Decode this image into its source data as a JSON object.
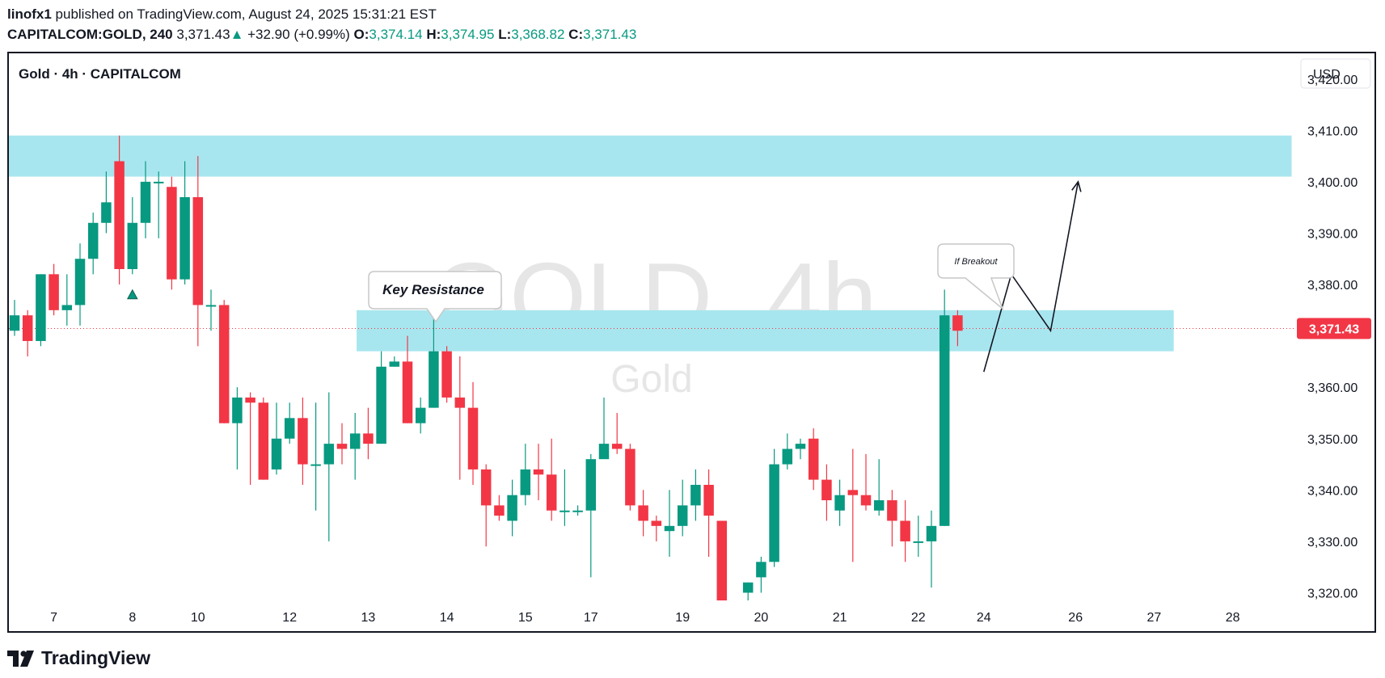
{
  "header": {
    "author": "linofx1",
    "published_text": "published on TradingView.com, August 24, 2025 15:31:21 EST",
    "symbol": "CAPITALCOM:GOLD, 240",
    "last": "3,371.43",
    "arrow": "▲",
    "change": "+32.90 (+0.99%)",
    "o_label": "O:",
    "o_value": "3,374.14",
    "h_label": "H:",
    "h_value": "3,374.95",
    "l_label": "L:",
    "l_value": "3,368.82",
    "c_label": "C:",
    "c_value": "3,371.43"
  },
  "pane": {
    "legend": "Gold · 4h · CAPITALCOM",
    "currency": "USD",
    "watermark": "GOLD, 4h",
    "watermark_sub": "Gold",
    "price_tag": "3,371.43",
    "annotation_key": "Key Resistance",
    "annotation_breakout": "If Breakout"
  },
  "footer": {
    "brand": "TradingView"
  },
  "colors": {
    "up": "#089981",
    "down": "#f23645",
    "zone": "#a8e6ef",
    "price_line": "#f23645",
    "watermark": "#e6e6e6"
  },
  "chart_data": {
    "type": "candlestick",
    "title": "Gold · 4h · CAPITALCOM",
    "ylim": [
      3318.5,
      3425
    ],
    "y_ticks": [
      3320,
      3330,
      3340,
      3350,
      3360,
      3370,
      3380,
      3390,
      3400,
      3410,
      3420
    ],
    "y_tick_labels": [
      "3,320.00",
      "3,330.00",
      "3,340.00",
      "3,350.00",
      "3,360.00",
      "",
      "3,380.00",
      "3,390.00",
      "3,400.00",
      "3,410.00",
      "3,420.00"
    ],
    "x_ticks": [
      {
        "index": 3,
        "label": "7"
      },
      {
        "index": 9,
        "label": "8"
      },
      {
        "index": 14,
        "label": "10"
      },
      {
        "index": 21,
        "label": "12"
      },
      {
        "index": 27,
        "label": "13"
      },
      {
        "index": 33,
        "label": "14"
      },
      {
        "index": 39,
        "label": "15"
      },
      {
        "index": 44,
        "label": "17"
      },
      {
        "index": 51,
        "label": "19"
      },
      {
        "index": 57,
        "label": "20"
      },
      {
        "index": 63,
        "label": "21"
      },
      {
        "index": 69,
        "label": "22"
      },
      {
        "index": 74,
        "label": "24"
      },
      {
        "index": 81,
        "label": "26"
      },
      {
        "index": 87,
        "label": "27"
      },
      {
        "index": 93,
        "label": "28"
      }
    ],
    "candles": [
      [
        3371,
        3374,
        3377,
        3370
      ],
      [
        3374,
        3369,
        3375,
        3366
      ],
      [
        3369,
        3382,
        3382,
        3368
      ],
      [
        3382,
        3375,
        3384,
        3374
      ],
      [
        3375,
        3376,
        3382,
        3372
      ],
      [
        3376,
        3385,
        3388,
        3372
      ],
      [
        3385,
        3392,
        3394,
        3382
      ],
      [
        3392,
        3396,
        3402,
        3390
      ],
      [
        3404,
        3383,
        3409,
        3380
      ],
      [
        3383,
        3392,
        3397,
        3382
      ],
      [
        3392,
        3400,
        3404,
        3389
      ],
      [
        3400,
        3400,
        3402,
        3389
      ],
      [
        3399,
        3381,
        3401,
        3379
      ],
      [
        3381,
        3397,
        3404,
        3380
      ],
      [
        3397,
        3376,
        3405,
        3368
      ],
      [
        3376,
        3376,
        3379,
        3371
      ],
      [
        3376,
        3353,
        3377,
        3353
      ],
      [
        3353,
        3358,
        3360,
        3344
      ],
      [
        3358,
        3357,
        3359,
        3341
      ],
      [
        3357,
        3342,
        3358,
        3342
      ],
      [
        3344,
        3350,
        3357,
        3343
      ],
      [
        3350,
        3354,
        3357,
        3349
      ],
      [
        3354,
        3345,
        3358,
        3341
      ],
      [
        3345,
        3345,
        3357,
        3336
      ],
      [
        3345,
        3349,
        3359,
        3330
      ],
      [
        3349,
        3348,
        3353,
        3345
      ],
      [
        3348,
        3351,
        3355,
        3342
      ],
      [
        3351,
        3349,
        3356,
        3346
      ],
      [
        3349,
        3364,
        3367,
        3349
      ],
      [
        3364,
        3365,
        3366,
        3364
      ],
      [
        3365,
        3353,
        3370,
        3353
      ],
      [
        3353,
        3356,
        3358,
        3351
      ],
      [
        3356,
        3367,
        3374,
        3356
      ],
      [
        3367,
        3358,
        3368,
        3357
      ],
      [
        3358,
        3356,
        3366,
        3342
      ],
      [
        3356,
        3344,
        3361,
        3341
      ],
      [
        3344,
        3337,
        3345,
        3329
      ],
      [
        3337,
        3335,
        3339,
        3334
      ],
      [
        3334,
        3339,
        3342,
        3331
      ],
      [
        3339,
        3344,
        3349,
        3337
      ],
      [
        3344,
        3343,
        3349,
        3338
      ],
      [
        3343,
        3336,
        3350,
        3334
      ],
      [
        3336,
        3336,
        3344,
        3333
      ],
      [
        3336,
        3336,
        3337,
        3335
      ],
      [
        3336,
        3346,
        3347,
        3323
      ],
      [
        3346,
        3349,
        3358,
        3347
      ],
      [
        3349,
        3348,
        3355,
        3347
      ],
      [
        3348,
        3337,
        3349,
        3336
      ],
      [
        3337,
        3334,
        3340,
        3331
      ],
      [
        3334,
        3333,
        3335,
        3330
      ],
      [
        3332,
        3333,
        3340,
        3327
      ],
      [
        3333,
        3337,
        3342,
        3331
      ],
      [
        3337,
        3341,
        3344,
        3334
      ],
      [
        3341,
        3335,
        3344,
        3327
      ],
      [
        3334,
        3318,
        3334,
        3317
      ],
      [
        3316,
        3318,
        3318,
        3315
      ],
      [
        3320,
        3322,
        3322,
        3317
      ],
      [
        3323,
        3326,
        3327,
        3320
      ],
      [
        3326,
        3345,
        3348,
        3325
      ],
      [
        3345,
        3348,
        3351,
        3344
      ],
      [
        3348,
        3349,
        3350,
        3346
      ],
      [
        3350,
        3342,
        3352,
        3340
      ],
      [
        3342,
        3338,
        3345,
        3334
      ],
      [
        3336,
        3339,
        3342,
        3333
      ],
      [
        3340,
        3339,
        3348,
        3326
      ],
      [
        3339,
        3337,
        3347,
        3336
      ],
      [
        3336,
        3338,
        3346,
        3335
      ],
      [
        3338,
        3334,
        3340,
        3329
      ],
      [
        3334,
        3330,
        3338,
        3326
      ],
      [
        3330,
        3330,
        3335,
        3327
      ],
      [
        3330,
        3333,
        3336,
        3321
      ],
      [
        3333,
        3374,
        3379,
        3333
      ],
      [
        3374,
        3371,
        3375,
        3368
      ]
    ],
    "zones": [
      {
        "from_index": -0.5,
        "to_index": 97.5,
        "low": 3401,
        "high": 3409
      },
      {
        "from_index": 26.5,
        "to_index": 88.5,
        "low": 3367,
        "high": 3375
      }
    ],
    "projection_path": [
      [
        74,
        3363
      ],
      [
        76.1,
        3382
      ],
      [
        79.1,
        3371
      ],
      [
        81.2,
        3400
      ]
    ],
    "last_price": 3371.43,
    "marker": {
      "index": 9,
      "price": 3378
    }
  }
}
